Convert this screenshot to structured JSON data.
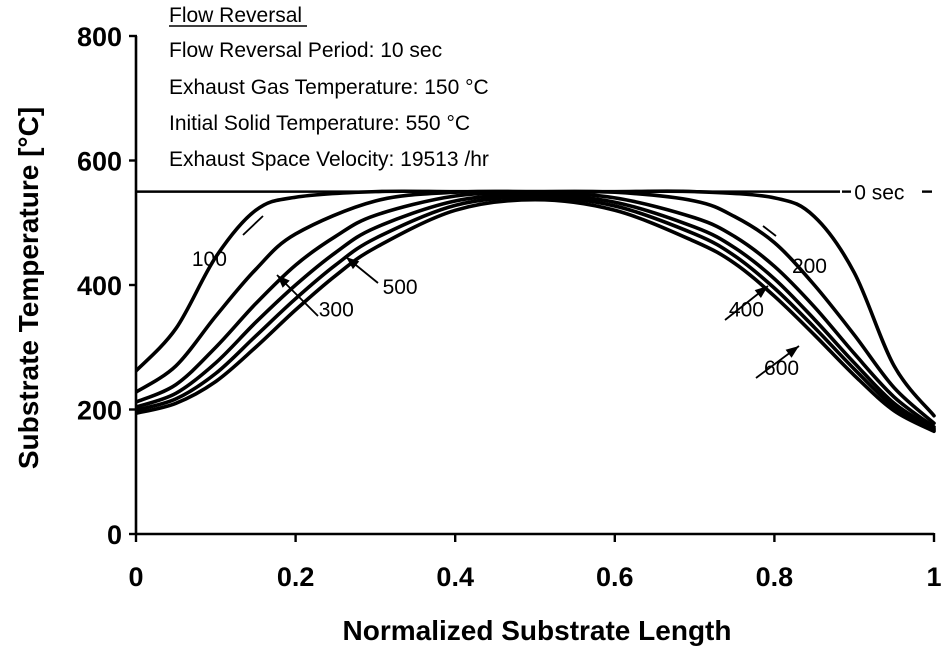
{
  "annotation": {
    "heading": "Flow Reversal",
    "lines": [
      "Flow Reversal Period: 10 sec",
      "Exhaust Gas Temperature: 150 °C",
      "Initial Solid Temperature: 550 °C",
      "Exhaust Space Velocity: 19513 /hr"
    ]
  },
  "chart_data": {
    "type": "line",
    "xlabel": "Normalized Substrate Length",
    "ylabel": "Substrate Temperature [°C]",
    "xlim": [
      0,
      1
    ],
    "ylim": [
      0,
      800
    ],
    "xticks": [
      0,
      0.2,
      0.4,
      0.6,
      0.8,
      1
    ],
    "xtick_labels": [
      "0",
      "0.2",
      "0.4",
      "0.6",
      "0.8",
      "1"
    ],
    "yticks": [
      0,
      200,
      400,
      600,
      800
    ],
    "ytick_labels": [
      "0",
      "200",
      "400",
      "600",
      "800"
    ],
    "grid": false,
    "series": [
      {
        "name": "0 sec",
        "x": [
          0,
          1
        ],
        "y": [
          550,
          550
        ]
      },
      {
        "name": "100",
        "x": [
          0,
          0.05,
          0.1,
          0.15,
          0.2,
          0.3,
          0.4,
          0.5,
          0.6,
          0.7,
          0.8,
          0.85,
          0.9,
          0.95,
          1
        ],
        "y": [
          262,
          330,
          445,
          520,
          541,
          550,
          550,
          550,
          550,
          550,
          540,
          510,
          420,
          270,
          190
        ]
      },
      {
        "name": "200",
        "x": [
          0,
          0.05,
          0.1,
          0.15,
          0.2,
          0.3,
          0.4,
          0.5,
          0.6,
          0.7,
          0.75,
          0.8,
          0.85,
          0.9,
          0.95,
          1
        ],
        "y": [
          228,
          270,
          350,
          425,
          482,
          535,
          549,
          550,
          549,
          535,
          510,
          468,
          400,
          320,
          235,
          178
        ]
      },
      {
        "name": "300",
        "x": [
          0,
          0.05,
          0.1,
          0.15,
          0.2,
          0.25,
          0.3,
          0.4,
          0.5,
          0.6,
          0.7,
          0.75,
          0.8,
          0.85,
          0.9,
          0.95,
          1
        ],
        "y": [
          212,
          240,
          300,
          370,
          432,
          478,
          512,
          543,
          548,
          540,
          508,
          478,
          430,
          365,
          290,
          220,
          172
        ]
      },
      {
        "name": "400",
        "x": [
          0,
          0.05,
          0.1,
          0.15,
          0.2,
          0.25,
          0.3,
          0.4,
          0.5,
          0.6,
          0.7,
          0.75,
          0.8,
          0.85,
          0.9,
          0.95,
          1
        ],
        "y": [
          204,
          226,
          275,
          340,
          400,
          452,
          492,
          535,
          545,
          533,
          493,
          460,
          410,
          345,
          275,
          210,
          169
        ]
      },
      {
        "name": "500",
        "x": [
          0,
          0.05,
          0.1,
          0.15,
          0.2,
          0.25,
          0.3,
          0.4,
          0.5,
          0.6,
          0.7,
          0.75,
          0.8,
          0.85,
          0.9,
          0.95,
          1
        ],
        "y": [
          199,
          217,
          258,
          318,
          378,
          432,
          475,
          528,
          541,
          527,
          482,
          447,
          395,
          332,
          265,
          204,
          167
        ]
      },
      {
        "name": "600",
        "x": [
          0,
          0.05,
          0.1,
          0.15,
          0.2,
          0.25,
          0.3,
          0.4,
          0.5,
          0.6,
          0.7,
          0.75,
          0.8,
          0.85,
          0.9,
          0.95,
          1
        ],
        "y": [
          194,
          210,
          245,
          300,
          360,
          415,
          460,
          520,
          537,
          520,
          470,
          435,
          382,
          320,
          255,
          198,
          165
        ]
      }
    ],
    "curve_labels": [
      {
        "text": "0 sec",
        "x": 0.9,
        "y": 550
      },
      {
        "text": "100",
        "x": 0.07,
        "y": 443
      },
      {
        "text": "200",
        "x": 0.822,
        "y": 432
      },
      {
        "text": "300",
        "x": 0.229,
        "y": 362
      },
      {
        "text": "400",
        "x": 0.743,
        "y": 362
      },
      {
        "text": "500",
        "x": 0.309,
        "y": 398
      },
      {
        "text": "600",
        "x": 0.787,
        "y": 268
      }
    ]
  }
}
